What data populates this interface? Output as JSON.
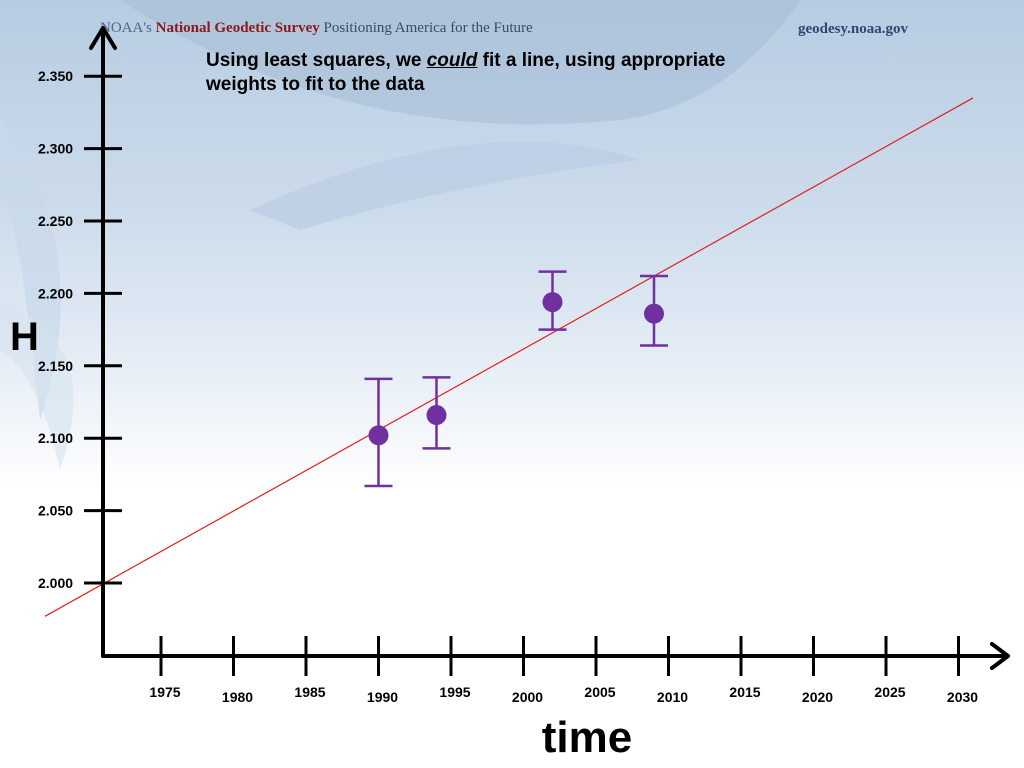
{
  "header": {
    "org_prefix": "NOAA's ",
    "org_brand": "National Geodetic Survey",
    "org_tagline": " Positioning America for the Future",
    "site": "geodesy.noaa.gov"
  },
  "slide": {
    "title_before": "Using least squares, we ",
    "title_emph": "could",
    "title_after": " fit a line, using appropriate weights to fit to the data"
  },
  "colors": {
    "fit_line": "#e0201c",
    "points": "#7030a0",
    "axis": "#000000"
  },
  "chart_data": {
    "type": "scatter",
    "title": "",
    "xlabel": "time",
    "ylabel": "H",
    "x_ticks": [
      1975,
      1980,
      1985,
      1990,
      1995,
      2000,
      2005,
      2010,
      2015,
      2020,
      2025,
      2030
    ],
    "y_ticks": [
      "2.000",
      "2.050",
      "2.100",
      "2.150",
      "2.200",
      "2.250",
      "2.300",
      "2.350"
    ],
    "xlim": [
      1971,
      2034
    ],
    "ylim": [
      1.95,
      2.4
    ],
    "grid": false,
    "points": [
      {
        "x": 1990,
        "y": 2.102,
        "err_low": 2.067,
        "err_high": 2.141
      },
      {
        "x": 1994,
        "y": 2.116,
        "err_low": 2.093,
        "err_high": 2.142
      },
      {
        "x": 2002,
        "y": 2.194,
        "err_low": 2.175,
        "err_high": 2.215
      },
      {
        "x": 2009,
        "y": 2.186,
        "err_low": 2.164,
        "err_high": 2.212
      }
    ],
    "fit_line": {
      "x1": 1967,
      "y1": 1.977,
      "x2": 2031,
      "y2": 2.335
    }
  }
}
